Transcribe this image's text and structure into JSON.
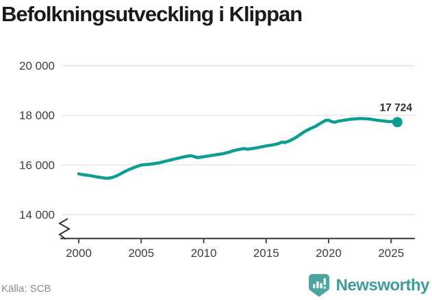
{
  "title": "Befolkningsutveckling i Klippan",
  "chart_data": {
    "type": "line",
    "title": "Befolkningsutveckling i Klippan",
    "xlabel": "",
    "ylabel": "",
    "x_start": 2000,
    "x_step": 0.25,
    "x_ticks": [
      "2000",
      "2005",
      "2010",
      "2015",
      "2020",
      "2025"
    ],
    "x_tick_values": [
      2000,
      2005,
      2010,
      2015,
      2020,
      2025
    ],
    "y_ticks": [
      "14 000",
      "16 000",
      "18 000",
      "20 000"
    ],
    "y_tick_values": [
      14000,
      16000,
      18000,
      20000
    ],
    "ylim": [
      14000,
      20000
    ],
    "y_axis_break": true,
    "grid": "horizontal",
    "legend": "none",
    "end_label": "17 724",
    "end_value": 17724,
    "series": [
      {
        "name": "Befolkning i Klippan (kvartalsvis)",
        "values": [
          15640,
          15615,
          15595,
          15580,
          15560,
          15535,
          15515,
          15495,
          15475,
          15460,
          15475,
          15505,
          15555,
          15615,
          15685,
          15750,
          15805,
          15860,
          15910,
          15955,
          15995,
          16010,
          16020,
          16035,
          16050,
          16070,
          16095,
          16125,
          16155,
          16185,
          16215,
          16245,
          16275,
          16305,
          16335,
          16355,
          16370,
          16330,
          16295,
          16310,
          16330,
          16350,
          16370,
          16390,
          16410,
          16430,
          16450,
          16480,
          16510,
          16550,
          16590,
          16615,
          16640,
          16660,
          16630,
          16650,
          16670,
          16690,
          16715,
          16740,
          16765,
          16785,
          16805,
          16830,
          16860,
          16920,
          16900,
          16945,
          17000,
          17070,
          17145,
          17230,
          17320,
          17390,
          17450,
          17510,
          17570,
          17650,
          17720,
          17790,
          17800,
          17740,
          17720,
          17760,
          17780,
          17800,
          17820,
          17840,
          17850,
          17860,
          17870,
          17865,
          17860,
          17850,
          17830,
          17810,
          17790,
          17780,
          17765,
          17750,
          17745,
          17735,
          17724
        ]
      }
    ]
  },
  "footer": {
    "source": "Källa: SCB",
    "brand": "Newsworthy"
  },
  "icons": {
    "brand_icon": "newsworthy-speech-bubble-bar-chart",
    "axis_break_icon": "y-axis-break-zigzag"
  },
  "colors": {
    "line": "#0d9e92",
    "end_dot": "#0d9e92",
    "end_label_text": "#2b2b2b",
    "grid": "#e4e4e4",
    "axis": "#4a4a4a",
    "tick_label": "#3d3d3d",
    "title_text": "#1a1a1a",
    "source_text": "#8c8c8c",
    "brand_teal": "#3e9c98",
    "brand_icon_fill": "#4ba6a2",
    "background": "#ffffff"
  }
}
